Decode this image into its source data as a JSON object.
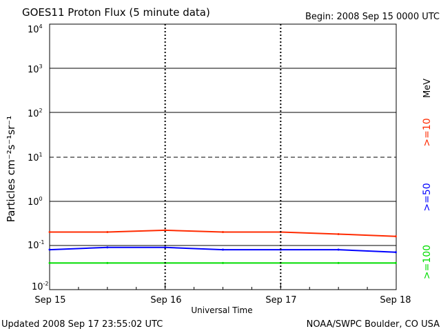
{
  "header": {
    "title": "GOES11 Proton Flux (5 minute data)",
    "begin": "Begin: 2008 Sep 15 0000 UTC"
  },
  "footer": {
    "updated": "Updated 2008 Sep 17 23:55:02 UTC",
    "credit": "NOAA/SWPC Boulder, CO USA"
  },
  "axes": {
    "ylabel": "Particles cm⁻²s⁻¹sr⁻¹",
    "xlabel": "Universal Time",
    "unit": "MeV",
    "y_ticks": [
      {
        "base": "10",
        "exp": "-2"
      },
      {
        "base": "10",
        "exp": "-1"
      },
      {
        "base": "10",
        "exp": "0"
      },
      {
        "base": "10",
        "exp": "1"
      },
      {
        "base": "10",
        "exp": "2"
      },
      {
        "base": "10",
        "exp": "3"
      },
      {
        "base": "10",
        "exp": "4"
      }
    ],
    "x_ticks": [
      "Sep 15",
      "Sep 16",
      "Sep 17",
      "Sep 18"
    ]
  },
  "colors": {
    "ge10": "#ff2a00",
    "ge50": "#0000ff",
    "ge100": "#00dd00"
  },
  "chart_data": {
    "type": "line",
    "title": "GOES11 Proton Flux (5 minute data)",
    "xlabel": "Universal Time",
    "ylabel": "Particles cm⁻²s⁻¹sr⁻¹",
    "y_scale": "log",
    "ylim": [
      0.01,
      10000
    ],
    "xlim": [
      "2008-09-15",
      "2008-09-18"
    ],
    "grid": true,
    "legend": "right (vertical labels)",
    "series": [
      {
        "name": ">=10",
        "unit": "MeV",
        "color": "#ff2a00",
        "x": [
          "2008-09-15 00:00",
          "2008-09-15 12:00",
          "2008-09-16 00:00",
          "2008-09-16 12:00",
          "2008-09-17 00:00",
          "2008-09-17 12:00",
          "2008-09-17 23:55"
        ],
        "values": [
          0.2,
          0.2,
          0.22,
          0.2,
          0.2,
          0.18,
          0.16
        ]
      },
      {
        "name": ">=50",
        "unit": "MeV",
        "color": "#0000ff",
        "x": [
          "2008-09-15 00:00",
          "2008-09-15 12:00",
          "2008-09-16 00:00",
          "2008-09-16 12:00",
          "2008-09-17 00:00",
          "2008-09-17 12:00",
          "2008-09-17 23:55"
        ],
        "values": [
          0.08,
          0.09,
          0.09,
          0.08,
          0.08,
          0.08,
          0.07
        ]
      },
      {
        "name": ">=100",
        "unit": "MeV",
        "color": "#00dd00",
        "x": [
          "2008-09-15 00:00",
          "2008-09-15 12:00",
          "2008-09-16 00:00",
          "2008-09-16 12:00",
          "2008-09-17 00:00",
          "2008-09-17 12:00",
          "2008-09-17 23:55"
        ],
        "values": [
          0.04,
          0.04,
          0.04,
          0.04,
          0.04,
          0.04,
          0.04
        ]
      }
    ]
  }
}
